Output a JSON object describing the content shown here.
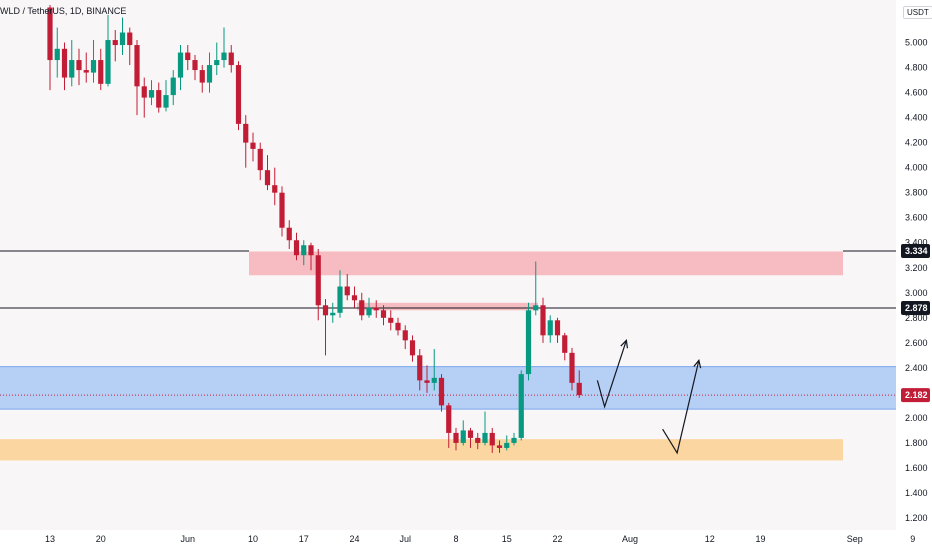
{
  "symbol_title": "WLD / TetherUS, 1D, BINANCE",
  "currency": "USDT",
  "chart_data": {
    "type": "candlestick",
    "price_axis": {
      "ticks": [
        "5.000",
        "4.800",
        "4.600",
        "4.400",
        "4.200",
        "4.000",
        "3.800",
        "3.600",
        "3.400",
        "3.200",
        "3.000",
        "2.800",
        "2.600",
        "2.400",
        "2.200",
        "2.000",
        "1.800",
        "1.600",
        "1.400",
        "1.200"
      ],
      "range": [
        1.12,
        5.34
      ]
    },
    "time_axis": {
      "labels": [
        {
          "text": "13",
          "day": 0
        },
        {
          "text": "20",
          "day": 7
        },
        {
          "text": "Jun",
          "day": 19
        },
        {
          "text": "10",
          "day": 28
        },
        {
          "text": "17",
          "day": 35
        },
        {
          "text": "24",
          "day": 42
        },
        {
          "text": "Jul",
          "day": 49
        },
        {
          "text": "8",
          "day": 56
        },
        {
          "text": "15",
          "day": 63
        },
        {
          "text": "22",
          "day": 70
        },
        {
          "text": "Aug",
          "day": 80
        },
        {
          "text": "12",
          "day": 91
        },
        {
          "text": "19",
          "day": 98
        },
        {
          "text": "Sep",
          "day": 111
        },
        {
          "text": "9",
          "day": 119
        }
      ]
    },
    "candles": [
      [
        5.28,
        4.86,
        5.3,
        4.62
      ],
      [
        4.86,
        4.95,
        5.12,
        4.72
      ],
      [
        4.95,
        4.72,
        5.0,
        4.62
      ],
      [
        4.72,
        4.86,
        5.02,
        4.65
      ],
      [
        4.86,
        4.78,
        4.95,
        4.66
      ],
      [
        4.78,
        4.76,
        4.92,
        4.68
      ],
      [
        4.76,
        4.86,
        5.02,
        4.68
      ],
      [
        4.86,
        4.67,
        4.95,
        4.62
      ],
      [
        4.67,
        5.02,
        5.22,
        4.65
      ],
      [
        5.02,
        4.98,
        5.1,
        4.85
      ],
      [
        4.98,
        5.08,
        5.2,
        4.9
      ],
      [
        5.08,
        4.98,
        5.12,
        4.82
      ],
      [
        4.98,
        4.65,
        5.02,
        4.42
      ],
      [
        4.65,
        4.56,
        4.72,
        4.4
      ],
      [
        4.56,
        4.62,
        4.7,
        4.5
      ],
      [
        4.62,
        4.48,
        4.68,
        4.44
      ],
      [
        4.48,
        4.58,
        4.7,
        4.45
      ],
      [
        4.58,
        4.72,
        4.78,
        4.5
      ],
      [
        4.72,
        4.92,
        4.98,
        4.62
      ],
      [
        4.92,
        4.86,
        4.98,
        4.78
      ],
      [
        4.86,
        4.78,
        4.9,
        4.7
      ],
      [
        4.78,
        4.68,
        4.82,
        4.6
      ],
      [
        4.68,
        4.82,
        4.92,
        4.6
      ],
      [
        4.82,
        4.86,
        5.0,
        4.74
      ],
      [
        4.86,
        4.92,
        5.12,
        4.8
      ],
      [
        4.92,
        4.82,
        4.98,
        4.76
      ],
      [
        4.82,
        4.35,
        4.85,
        4.3
      ],
      [
        4.35,
        4.2,
        4.42,
        4.0
      ],
      [
        4.2,
        4.15,
        4.28,
        4.05
      ],
      [
        4.15,
        3.98,
        4.2,
        3.9
      ],
      [
        3.98,
        3.86,
        4.1,
        3.82
      ],
      [
        3.86,
        3.8,
        4.0,
        3.7
      ],
      [
        3.8,
        3.52,
        3.85,
        3.45
      ],
      [
        3.52,
        3.42,
        3.58,
        3.35
      ],
      [
        3.42,
        3.3,
        3.48,
        3.26
      ],
      [
        3.3,
        3.38,
        3.42,
        3.22
      ],
      [
        3.38,
        3.3,
        3.4,
        3.18
      ],
      [
        3.3,
        2.9,
        3.35,
        2.78
      ],
      [
        2.9,
        2.82,
        2.95,
        2.5
      ],
      [
        2.82,
        2.84,
        2.92,
        2.76
      ],
      [
        2.84,
        3.05,
        3.18,
        2.8
      ],
      [
        3.05,
        2.98,
        3.15,
        2.94
      ],
      [
        2.98,
        2.94,
        3.05,
        2.88
      ],
      [
        2.94,
        2.82,
        3.0,
        2.78
      ],
      [
        2.82,
        2.88,
        2.96,
        2.8
      ],
      [
        2.88,
        2.86,
        2.94,
        2.8
      ],
      [
        2.86,
        2.8,
        2.9,
        2.74
      ],
      [
        2.8,
        2.76,
        2.86,
        2.7
      ],
      [
        2.76,
        2.7,
        2.8,
        2.66
      ],
      [
        2.7,
        2.62,
        2.74,
        2.55
      ],
      [
        2.62,
        2.5,
        2.66,
        2.45
      ],
      [
        2.5,
        2.3,
        2.55,
        2.22
      ],
      [
        2.3,
        2.28,
        2.42,
        2.2
      ],
      [
        2.28,
        2.32,
        2.55,
        2.22
      ],
      [
        2.32,
        2.1,
        2.35,
        2.05
      ],
      [
        2.1,
        1.88,
        2.12,
        1.76
      ],
      [
        1.88,
        1.8,
        1.92,
        1.74
      ],
      [
        1.8,
        1.9,
        1.98,
        1.78
      ],
      [
        1.9,
        1.84,
        1.92,
        1.76
      ],
      [
        1.84,
        1.8,
        1.88,
        1.75
      ],
      [
        1.8,
        1.88,
        2.05,
        1.78
      ],
      [
        1.88,
        1.78,
        1.92,
        1.72
      ],
      [
        1.78,
        1.76,
        1.82,
        1.72
      ],
      [
        1.76,
        1.8,
        1.86,
        1.74
      ],
      [
        1.8,
        1.84,
        1.88,
        1.78
      ],
      [
        1.84,
        2.35,
        2.38,
        1.82
      ],
      [
        2.35,
        2.86,
        2.92,
        2.3
      ],
      [
        2.86,
        2.9,
        3.25,
        2.82
      ],
      [
        2.9,
        2.66,
        2.96,
        2.6
      ],
      [
        2.66,
        2.78,
        2.82,
        2.6
      ],
      [
        2.78,
        2.66,
        2.8,
        2.6
      ],
      [
        2.66,
        2.52,
        2.68,
        2.46
      ],
      [
        2.52,
        2.28,
        2.56,
        2.22
      ],
      [
        2.28,
        2.182,
        2.38,
        2.16
      ]
    ],
    "zones": [
      {
        "id": "resistance-zone",
        "low": 3.14,
        "high": 3.33,
        "color": "#f7b2b7"
      },
      {
        "id": "minor-resistance-zone",
        "low": 2.86,
        "high": 2.92,
        "color": "#f7b2b7"
      },
      {
        "id": "support-zone",
        "low": 2.07,
        "high": 2.41,
        "color": "#aac8f5"
      },
      {
        "id": "demand-zone",
        "low": 1.66,
        "high": 1.83,
        "color": "#fdd090"
      }
    ],
    "levels": [
      {
        "value": 3.334,
        "label": "3.334"
      },
      {
        "value": 2.878,
        "label": "2.878"
      },
      {
        "value": 2.182,
        "label": "2.182",
        "badge_color": "#c21d37"
      }
    ],
    "projection_arrows": [
      [
        [
          75.5,
          2.3
        ],
        [
          76.5,
          2.09
        ],
        [
          79.5,
          2.62
        ]
      ],
      [
        [
          84.5,
          1.91
        ],
        [
          86.5,
          1.72
        ],
        [
          89.5,
          2.46
        ]
      ]
    ],
    "colors": {
      "up": "#089981",
      "down": "#c21d37"
    }
  }
}
